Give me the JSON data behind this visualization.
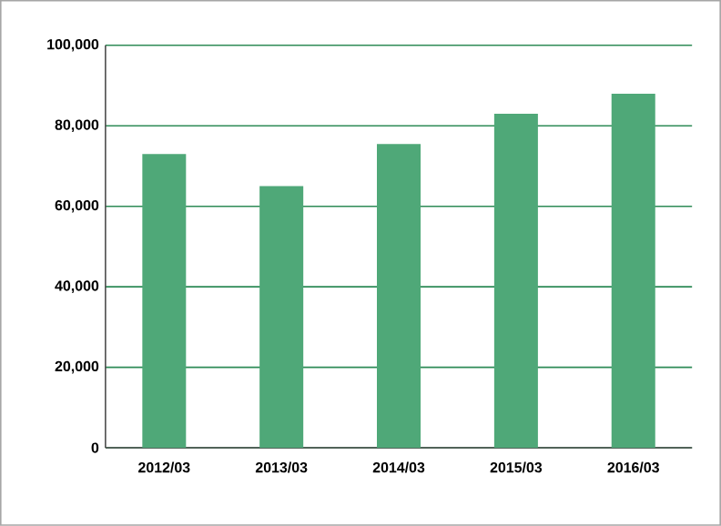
{
  "chart_data": {
    "type": "bar",
    "categories": [
      "2012/03",
      "2013/03",
      "2014/03",
      "2015/03",
      "2016/03"
    ],
    "values": [
      73000,
      65000,
      75500,
      83000,
      88000
    ],
    "color": "#4fa878",
    "ylim": [
      0,
      100000
    ],
    "yticks": [
      {
        "value": 0,
        "label": "0"
      },
      {
        "value": 20000,
        "label": "20,000"
      },
      {
        "value": 40000,
        "label": "40,000"
      },
      {
        "value": 60000,
        "label": "60,000"
      },
      {
        "value": 80000,
        "label": "80,000"
      },
      {
        "value": 100000,
        "label": "100,000"
      }
    ],
    "grid": "y"
  }
}
